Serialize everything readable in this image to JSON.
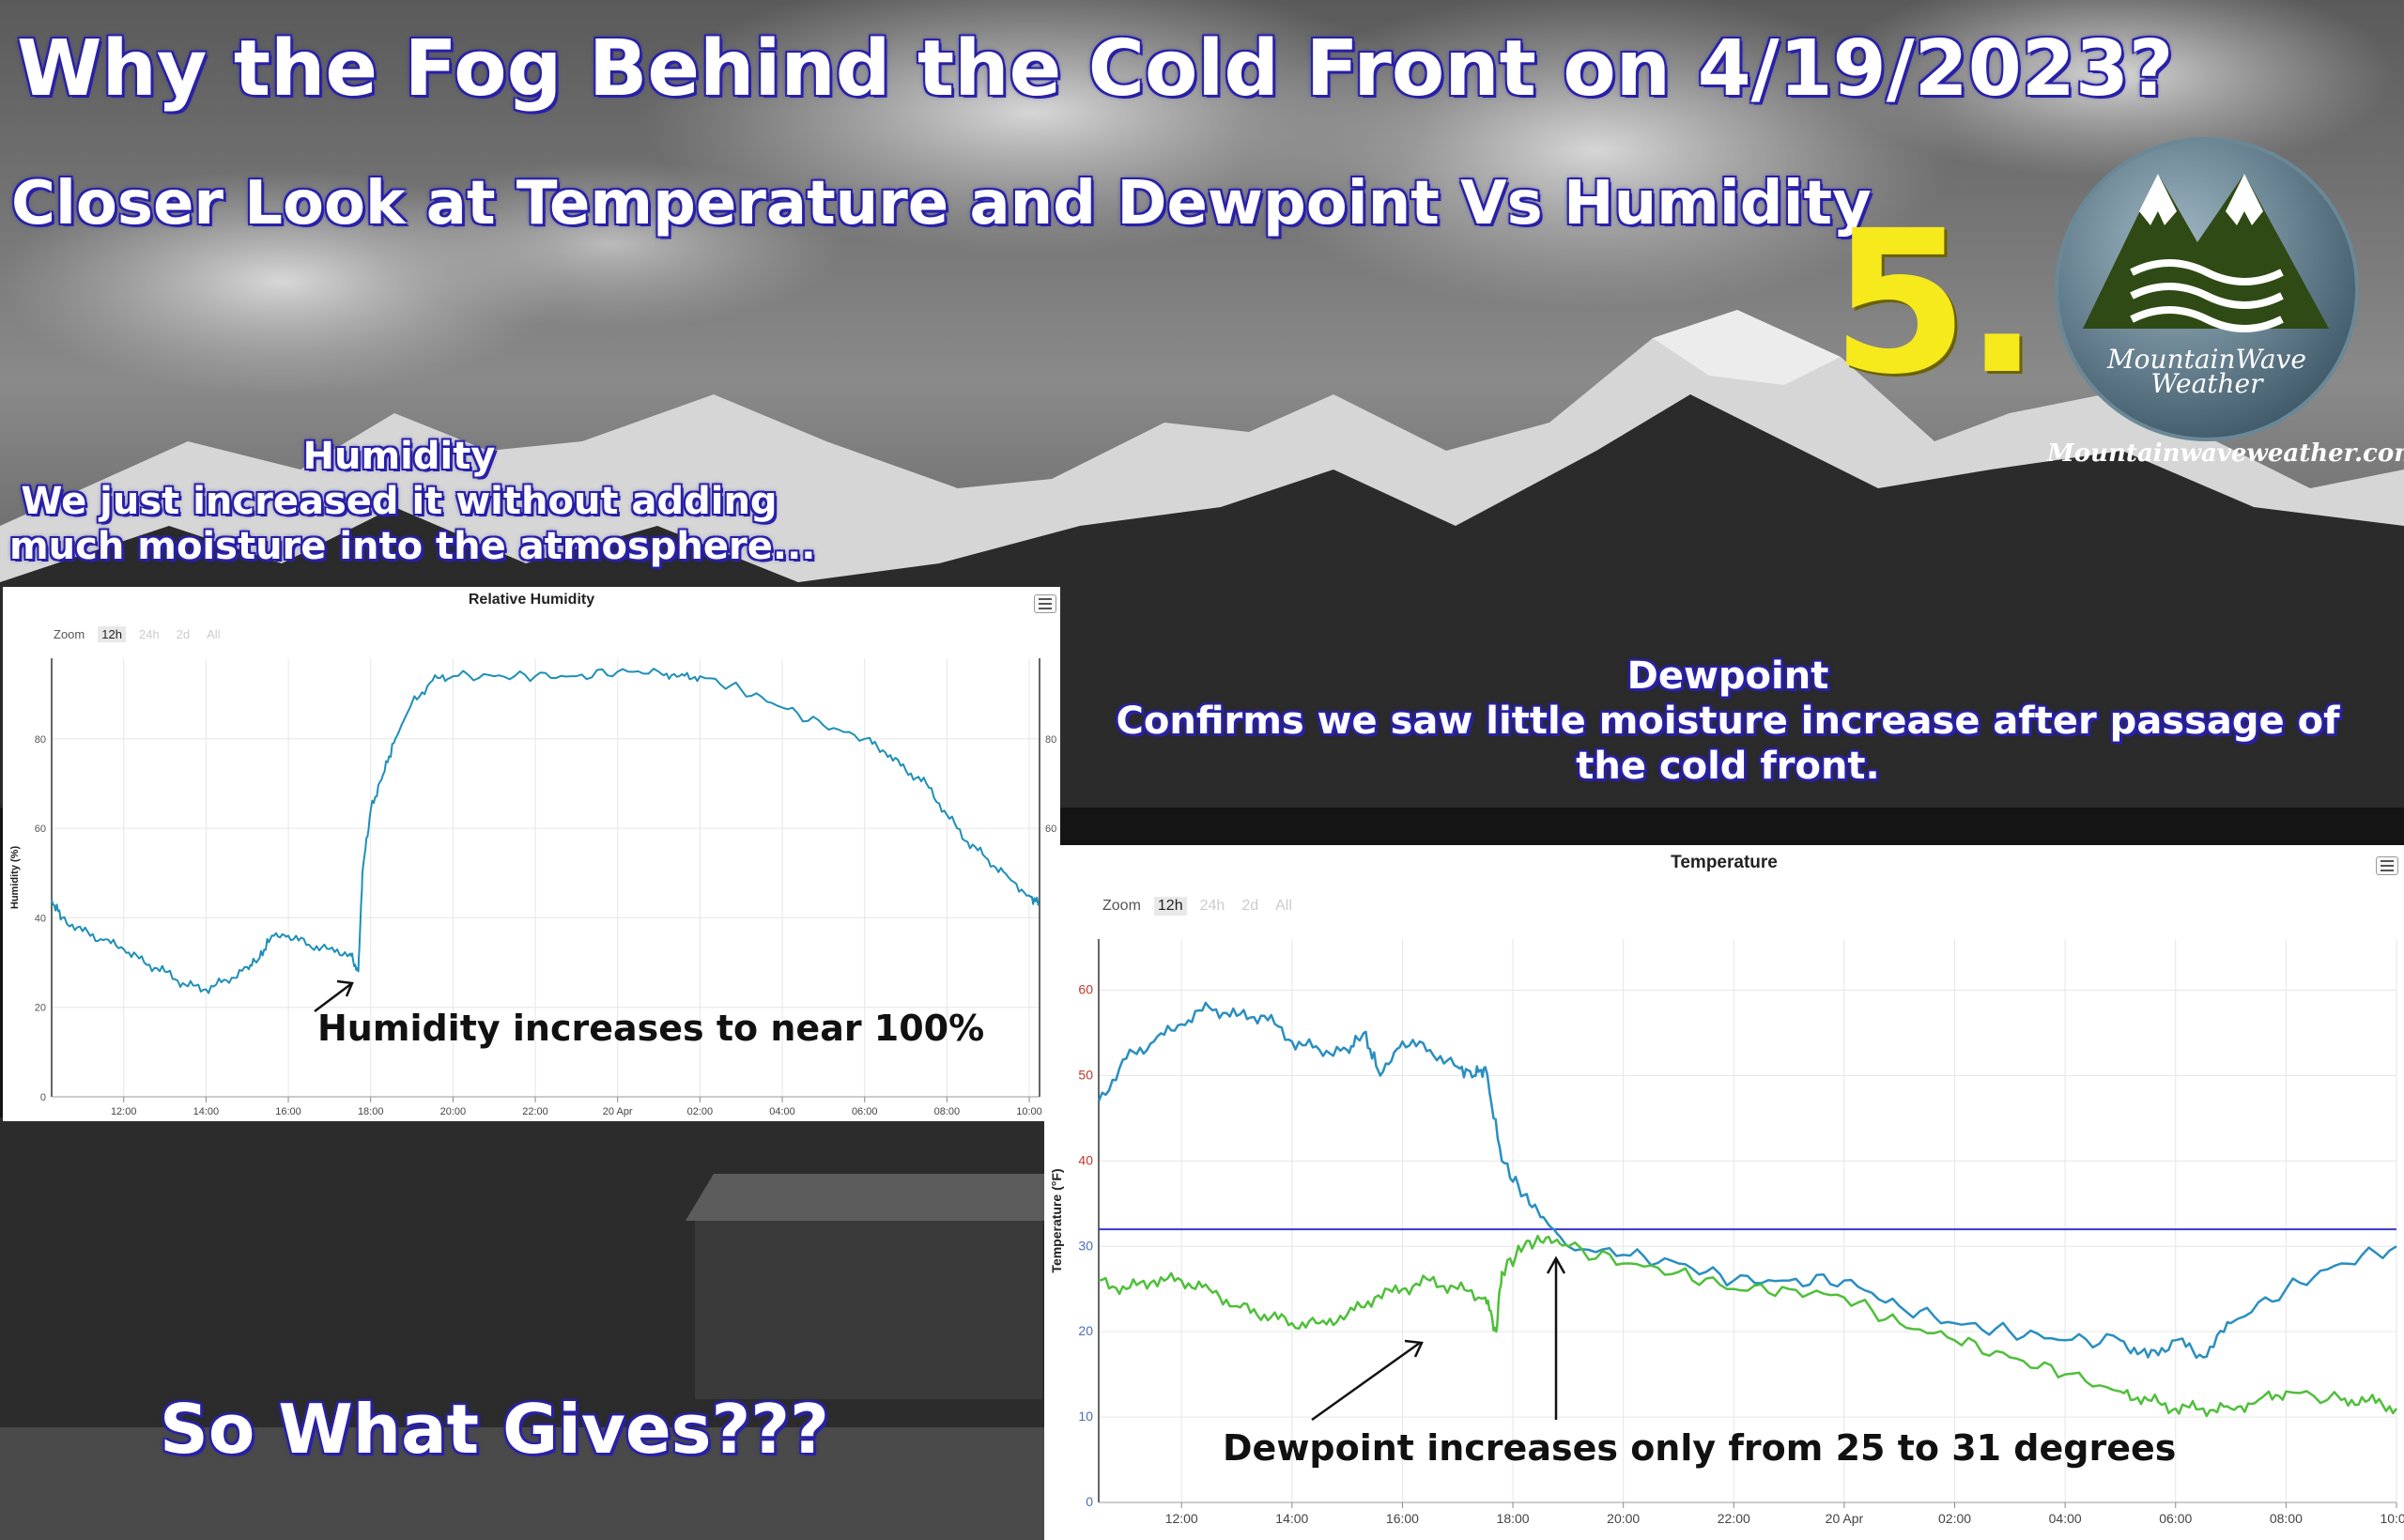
{
  "header": {
    "title": "Why the Fog Behind the Cold Front on 4/19/2023?",
    "subtitle": "Closer Look at Temperature and Dewpoint Vs Humidity",
    "step_number": "5.",
    "brand_line1": "MountainWave",
    "brand_line2": "Weather",
    "website": "Mountainwaveweather.com"
  },
  "humidity_caption": {
    "heading": "Humidity",
    "line1": "We just increased it without adding",
    "line2": "much moisture into the atmosphere..."
  },
  "dewpoint_caption": {
    "heading": "Dewpoint",
    "line1": "Confirms we saw little moisture increase after passage of",
    "line2": "the cold front."
  },
  "footer_text": "So What Gives???",
  "humidity_chart": {
    "title": "Relative Humidity",
    "zoom_label": "Zoom",
    "zoom_options": [
      "12h",
      "24h",
      "2d",
      "All"
    ],
    "annotation": "Humidity increases to near 100%"
  },
  "temperature_chart": {
    "title": "Temperature",
    "zoom_label": "Zoom",
    "zoom_options": [
      "12h",
      "24h",
      "2d",
      "2d",
      "All"
    ],
    "annotation": "Dewpoint increases only from 25 to 31 degrees"
  },
  "colors": {
    "humidity_line": "#1e8fb8",
    "temperature_line": "#2a8fc0",
    "dewpoint_line": "#4fbf3a",
    "freezing_line": "#3a3acc",
    "title_glow": "#2a22a8",
    "step_number": "#f6e91c"
  },
  "chart_data": [
    {
      "type": "line",
      "title": "Relative Humidity",
      "xlabel": "",
      "ylabel": "Humidity (%)",
      "x_tick_labels": [
        "12:00",
        "14:00",
        "16:00",
        "18:00",
        "20:00",
        "22:00",
        "20 Apr",
        "02:00",
        "04:00",
        "06:00",
        "08:00",
        "10:00"
      ],
      "y_ticks": [
        0,
        20,
        40,
        60,
        80
      ],
      "y_tick_labels": [
        "0",
        "20",
        "40",
        "60",
        "80"
      ],
      "xlim": [
        10.25,
        34.25
      ],
      "ylim": [
        0,
        98
      ],
      "grid": true,
      "legend": "none",
      "series": [
        {
          "x": [
            10.25,
            10.5,
            11.0,
            11.5,
            12.0,
            12.5,
            13.0,
            13.5,
            14.0,
            14.5,
            15.0,
            15.3,
            15.6,
            16.0,
            16.5,
            17.0,
            17.5,
            17.7,
            17.8,
            18.0,
            18.3,
            18.6,
            19.0,
            19.5,
            20.0,
            21.0,
            22.0,
            23.0,
            24.0,
            25.0,
            25.5,
            26.0,
            27.0,
            28.0,
            29.0,
            30.0,
            30.5,
            31.0,
            31.5,
            32.0,
            32.5,
            33.0,
            33.5,
            34.0,
            34.25
          ],
          "values": [
            44,
            40,
            37,
            35,
            33,
            30,
            28,
            25,
            24,
            26,
            29,
            31,
            36,
            36,
            34,
            33,
            32,
            28,
            50,
            64,
            72,
            80,
            88,
            93,
            94,
            94,
            94,
            94,
            95,
            95,
            94,
            94,
            91,
            87,
            83,
            80,
            77,
            73,
            70,
            63,
            57,
            53,
            49,
            45,
            43
          ]
        }
      ]
    },
    {
      "type": "line",
      "title": "Temperature",
      "xlabel": "",
      "ylabel": "Temperature (°F)",
      "x_tick_labels": [
        "12:00",
        "14:00",
        "16:00",
        "18:00",
        "20:00",
        "22:00",
        "20 Apr",
        "02:00",
        "04:00",
        "06:00",
        "08:00",
        "10:00"
      ],
      "y_ticks": [
        0,
        10,
        20,
        30,
        40,
        50,
        60
      ],
      "y_tick_labels": [
        "0",
        "10",
        "20",
        "30",
        "40",
        "50",
        "60"
      ],
      "xlim": [
        10.5,
        34.0
      ],
      "ylim": [
        0,
        66
      ],
      "grid": true,
      "legend": "none",
      "plot_lines": [
        {
          "axis": "y",
          "value": 32
        }
      ],
      "series": [
        {
          "x": [
            10.5,
            11.0,
            11.5,
            12.0,
            12.5,
            13.0,
            13.5,
            14.0,
            14.5,
            15.0,
            15.3,
            15.6,
            16.0,
            16.5,
            17.0,
            17.3,
            17.5,
            17.8,
            18.2,
            18.6,
            19.0,
            20.0,
            21.0,
            22.0,
            23.0,
            24.0,
            25.0,
            26.0,
            27.0,
            28.0,
            29.0,
            29.5,
            30.0,
            30.5,
            31.0,
            32.0,
            33.0,
            34.0
          ],
          "values": [
            47,
            52,
            54,
            56,
            58,
            57,
            57,
            54,
            53,
            53,
            55,
            50,
            54,
            53,
            51,
            50,
            51,
            40,
            36,
            33,
            30,
            29,
            28,
            26,
            26,
            26,
            23,
            21,
            20,
            19,
            19,
            17,
            19,
            17,
            21,
            25,
            28,
            30
          ]
        },
        {
          "x": [
            10.5,
            11.0,
            11.5,
            12.0,
            12.5,
            13.0,
            13.5,
            14.0,
            14.5,
            15.0,
            15.5,
            16.0,
            16.5,
            17.0,
            17.5,
            17.7,
            17.8,
            18.2,
            18.6,
            19.0,
            20.0,
            21.0,
            22.0,
            23.0,
            24.0,
            25.0,
            26.0,
            27.0,
            28.0,
            29.0,
            29.5,
            30.0,
            30.5,
            31.0,
            31.5,
            32.0,
            33.0,
            33.5,
            34.0
          ],
          "values": [
            26,
            25,
            26,
            26,
            25,
            23,
            22,
            21,
            21,
            22,
            24,
            25,
            26,
            25,
            24,
            20,
            27,
            30,
            31,
            30,
            28,
            27,
            25,
            25,
            24,
            21,
            19,
            17,
            15,
            13,
            12,
            11,
            11,
            11,
            12,
            13,
            12,
            12,
            11
          ]
        }
      ]
    }
  ]
}
